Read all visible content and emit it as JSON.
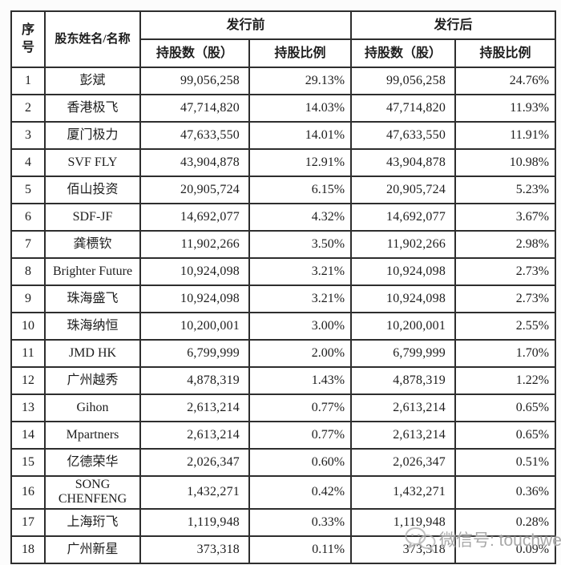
{
  "table": {
    "header": {
      "col_no": "序号",
      "col_name": "股东姓名/名称",
      "group_pre": "发行前",
      "group_post": "发行后",
      "col_shares": "持股数（股）",
      "col_ratio": "持股比例"
    },
    "rows": [
      {
        "no": "1",
        "name": "彭斌",
        "pre_shares": "99,056,258",
        "pre_ratio": "29.13%",
        "post_shares": "99,056,258",
        "post_ratio": "24.76%"
      },
      {
        "no": "2",
        "name": "香港极飞",
        "pre_shares": "47,714,820",
        "pre_ratio": "14.03%",
        "post_shares": "47,714,820",
        "post_ratio": "11.93%"
      },
      {
        "no": "3",
        "name": "厦门极力",
        "pre_shares": "47,633,550",
        "pre_ratio": "14.01%",
        "post_shares": "47,633,550",
        "post_ratio": "11.91%"
      },
      {
        "no": "4",
        "name": "SVF FLY",
        "pre_shares": "43,904,878",
        "pre_ratio": "12.91%",
        "post_shares": "43,904,878",
        "post_ratio": "10.98%"
      },
      {
        "no": "5",
        "name": "佰山投资",
        "pre_shares": "20,905,724",
        "pre_ratio": "6.15%",
        "post_shares": "20,905,724",
        "post_ratio": "5.23%"
      },
      {
        "no": "6",
        "name": "SDF-JF",
        "pre_shares": "14,692,077",
        "pre_ratio": "4.32%",
        "post_shares": "14,692,077",
        "post_ratio": "3.67%"
      },
      {
        "no": "7",
        "name": "龚槚钦",
        "pre_shares": "11,902,266",
        "pre_ratio": "3.50%",
        "post_shares": "11,902,266",
        "post_ratio": "2.98%"
      },
      {
        "no": "8",
        "name": "Brighter Future",
        "pre_shares": "10,924,098",
        "pre_ratio": "3.21%",
        "post_shares": "10,924,098",
        "post_ratio": "2.73%"
      },
      {
        "no": "9",
        "name": "珠海盛飞",
        "pre_shares": "10,924,098",
        "pre_ratio": "3.21%",
        "post_shares": "10,924,098",
        "post_ratio": "2.73%"
      },
      {
        "no": "10",
        "name": "珠海纳恒",
        "pre_shares": "10,200,001",
        "pre_ratio": "3.00%",
        "post_shares": "10,200,001",
        "post_ratio": "2.55%"
      },
      {
        "no": "11",
        "name": "JMD HK",
        "pre_shares": "6,799,999",
        "pre_ratio": "2.00%",
        "post_shares": "6,799,999",
        "post_ratio": "1.70%"
      },
      {
        "no": "12",
        "name": "广州越秀",
        "pre_shares": "4,878,319",
        "pre_ratio": "1.43%",
        "post_shares": "4,878,319",
        "post_ratio": "1.22%"
      },
      {
        "no": "13",
        "name": "Gihon",
        "pre_shares": "2,613,214",
        "pre_ratio": "0.77%",
        "post_shares": "2,613,214",
        "post_ratio": "0.65%"
      },
      {
        "no": "14",
        "name": "Mpartners",
        "pre_shares": "2,613,214",
        "pre_ratio": "0.77%",
        "post_shares": "2,613,214",
        "post_ratio": "0.65%"
      },
      {
        "no": "15",
        "name": "亿德荣华",
        "pre_shares": "2,026,347",
        "pre_ratio": "0.60%",
        "post_shares": "2,026,347",
        "post_ratio": "0.51%"
      },
      {
        "no": "16",
        "name": "SONG CHENFENG",
        "pre_shares": "1,432,271",
        "pre_ratio": "0.42%",
        "post_shares": "1,432,271",
        "post_ratio": "0.36%"
      },
      {
        "no": "17",
        "name": "上海珩飞",
        "pre_shares": "1,119,948",
        "pre_ratio": "0.33%",
        "post_shares": "1,119,948",
        "post_ratio": "0.28%"
      },
      {
        "no": "18",
        "name": "广州新星",
        "pre_shares": "373,318",
        "pre_ratio": "0.11%",
        "post_shares": "373,318",
        "post_ratio": "0.09%"
      }
    ]
  },
  "watermark": {
    "label": "微信号: touchweb",
    "icon": "wechat-icon",
    "color": "#a8a8a8"
  },
  "colors": {
    "border": "#2e2e2e",
    "text": "#1d1d1d",
    "background": "#ffffff"
  }
}
